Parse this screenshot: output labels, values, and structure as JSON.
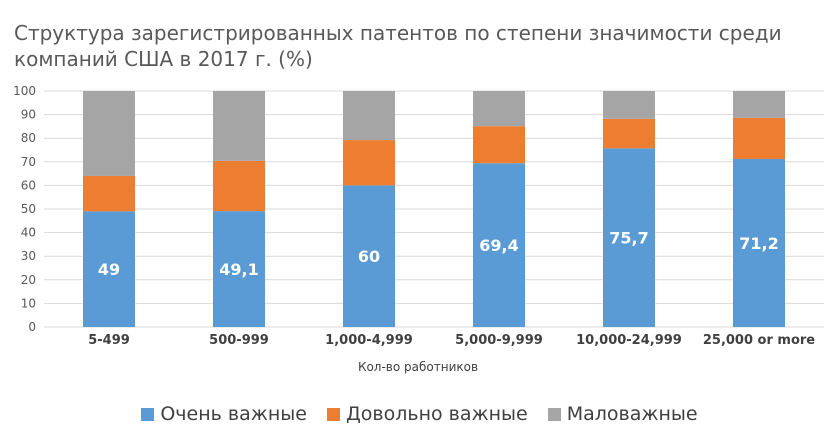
{
  "chart_data": {
    "type": "bar",
    "stacked": true,
    "title": "Структура зарегистрированных патентов по степени значимости среди компаний США в 2017 г. (%)",
    "xlabel": "Кол-во работников",
    "ylabel": "",
    "ylim": [
      0,
      100
    ],
    "yticks": [
      0,
      10,
      20,
      30,
      40,
      50,
      60,
      70,
      80,
      90,
      100
    ],
    "grid": true,
    "legend": "bottom",
    "categories": [
      "5-499",
      "500-999",
      "1,000-4,999",
      "5,000-9,999",
      "10,000-24,999",
      "25,000 or more"
    ],
    "series": [
      {
        "name": "Очень важные",
        "color": "#5b9bd5",
        "values": [
          49,
          49.1,
          60,
          69.4,
          75.7,
          71.2
        ],
        "data_labels": [
          "49",
          "49,1",
          "60",
          "69,4",
          "75,7",
          "71,2"
        ]
      },
      {
        "name": "Довольно важные",
        "color": "#ed7d31",
        "values": [
          15,
          21.3,
          19.2,
          15.7,
          12.5,
          17.4
        ]
      },
      {
        "name": "Маловажные",
        "color": "#a5a5a5",
        "values": [
          36,
          29.6,
          20.8,
          14.9,
          11.8,
          11.4
        ]
      }
    ]
  }
}
